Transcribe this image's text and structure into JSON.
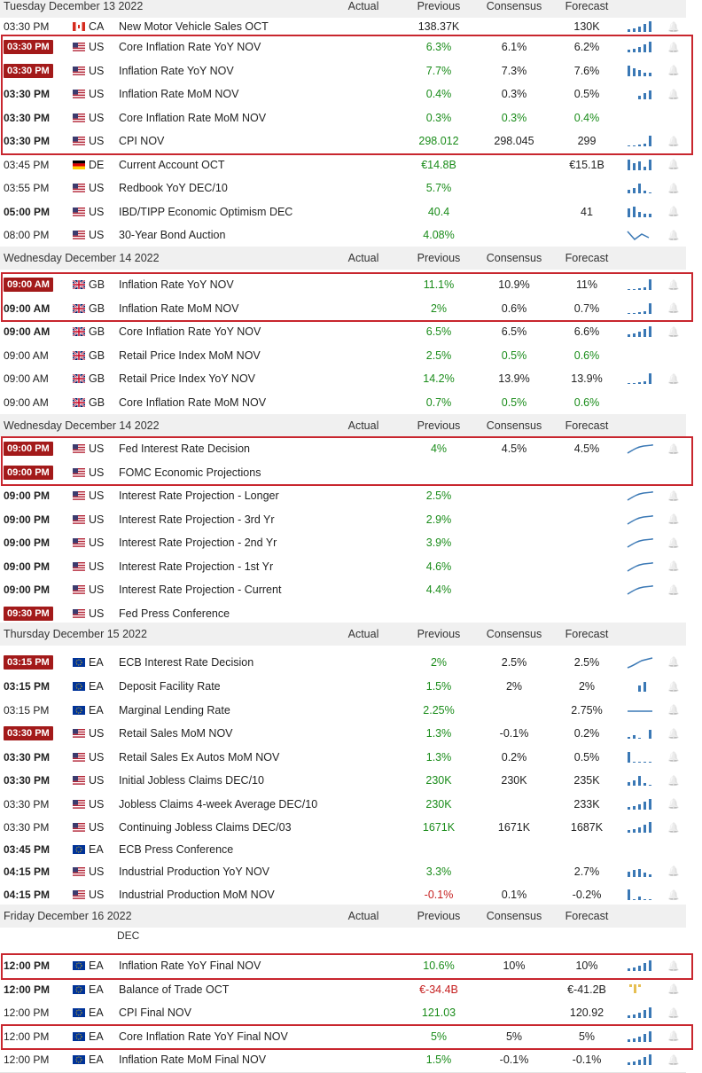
{
  "colors": {
    "positive": "#1a8c1a",
    "negative": "#c51f1f",
    "highlight_time": "#a31a1a",
    "box_border": "#c8262e",
    "spark_blue": "#3a78b5",
    "spark_gold": "#e6bf52"
  },
  "sections": [
    {
      "day": "Tuesday December 13 2022",
      "headers": {
        "actual": "Actual",
        "previous": "Previous",
        "consensus": "Consensus",
        "forecast": "Forecast"
      },
      "rows": [
        {
          "time": "03:30 PM",
          "time_style": "normal",
          "flag": "ca",
          "country": "CA",
          "event": "New Motor Vehicle Sales OCT",
          "actual": "",
          "previous": "138.37K",
          "previous_color": "none",
          "consensus": "",
          "forecast": "130K",
          "spark": "bars",
          "bell": true
        },
        {
          "time": "03:30 PM",
          "time_style": "highlight",
          "flag": "us",
          "country": "US",
          "event": "Core Inflation Rate YoY NOV",
          "actual": "",
          "previous": "6.3%",
          "previous_color": "green",
          "consensus": "6.1%",
          "forecast": "6.2%",
          "spark": "bars",
          "bell": true
        },
        {
          "time": "03:30 PM",
          "time_style": "highlight",
          "flag": "us",
          "country": "US",
          "event": "Inflation Rate YoY NOV",
          "actual": "",
          "previous": "7.7%",
          "previous_color": "green",
          "consensus": "7.3%",
          "forecast": "7.6%",
          "spark": "bars2",
          "bell": true
        },
        {
          "time": "03:30 PM",
          "time_style": "bold",
          "flag": "us",
          "country": "US",
          "event": "Inflation Rate MoM NOV",
          "actual": "",
          "previous": "0.4%",
          "previous_color": "green",
          "consensus": "0.3%",
          "forecast": "0.5%",
          "spark": "bars3",
          "bell": true
        },
        {
          "time": "03:30 PM",
          "time_style": "bold",
          "flag": "us",
          "country": "US",
          "event": "Core Inflation Rate MoM NOV",
          "actual": "",
          "previous": "0.3%",
          "previous_color": "green",
          "consensus": "0.3%",
          "consensus_color": "green",
          "forecast": "0.4%",
          "forecast_color": "green",
          "spark": "",
          "bell": false
        },
        {
          "time": "03:30 PM",
          "time_style": "bold",
          "flag": "us",
          "country": "US",
          "event": "CPI NOV",
          "actual": "",
          "previous": "298.012",
          "previous_color": "green",
          "consensus": "298.045",
          "forecast": "299",
          "spark": "rise",
          "bell": true
        },
        {
          "time": "03:45 PM",
          "time_style": "normal",
          "flag": "de",
          "country": "DE",
          "event": "Current Account OCT",
          "actual": "",
          "previous": "€14.8B",
          "previous_color": "green",
          "consensus": "",
          "forecast": "€15.1B",
          "spark": "bars4",
          "bell": true
        },
        {
          "time": "03:55 PM",
          "time_style": "normal",
          "flag": "us",
          "country": "US",
          "event": "Redbook YoY DEC/10",
          "actual": "",
          "previous": "5.7%",
          "previous_color": "green",
          "consensus": "",
          "forecast": "",
          "spark": "bars5",
          "bell": true
        },
        {
          "time": "05:00 PM",
          "time_style": "bold",
          "flag": "us",
          "country": "US",
          "event": "IBD/TIPP Economic Optimism DEC",
          "actual": "",
          "previous": "40.4",
          "previous_color": "green",
          "consensus": "",
          "forecast": "41",
          "spark": "bars6",
          "bell": true
        },
        {
          "time": "08:00 PM",
          "time_style": "normal",
          "flag": "us",
          "country": "US",
          "event": "30-Year Bond Auction",
          "actual": "",
          "previous": "4.08%",
          "previous_color": "green",
          "consensus": "",
          "forecast": "",
          "spark": "zig",
          "bell": true
        }
      ]
    },
    {
      "day": "Wednesday December 14 2022",
      "headers": {
        "actual": "Actual",
        "previous": "Previous",
        "consensus": "Consensus",
        "forecast": "Forecast"
      },
      "rows": [
        {
          "time": "09:00 AM",
          "time_style": "highlight",
          "flag": "gb",
          "country": "GB",
          "event": "Inflation Rate YoY NOV",
          "actual": "",
          "previous": "11.1%",
          "previous_color": "green",
          "consensus": "10.9%",
          "forecast": "11%",
          "spark": "rise",
          "bell": true
        },
        {
          "time": "09:00 AM",
          "time_style": "bold",
          "flag": "gb",
          "country": "GB",
          "event": "Inflation Rate MoM NOV",
          "actual": "",
          "previous": "2%",
          "previous_color": "green",
          "consensus": "0.6%",
          "forecast": "0.7%",
          "spark": "rise",
          "bell": true
        },
        {
          "time": "09:00 AM",
          "time_style": "bold",
          "flag": "gb",
          "country": "GB",
          "event": "Core Inflation Rate YoY NOV",
          "actual": "",
          "previous": "6.5%",
          "previous_color": "green",
          "consensus": "6.5%",
          "forecast": "6.6%",
          "spark": "bars",
          "bell": true
        },
        {
          "time": "09:00 AM",
          "time_style": "normal",
          "flag": "gb",
          "country": "GB",
          "event": "Retail Price Index MoM NOV",
          "actual": "",
          "previous": "2.5%",
          "previous_color": "green",
          "consensus": "0.5%",
          "consensus_color": "green",
          "forecast": "0.6%",
          "forecast_color": "green",
          "spark": "",
          "bell": false
        },
        {
          "time": "09:00 AM",
          "time_style": "normal",
          "flag": "gb",
          "country": "GB",
          "event": "Retail Price Index YoY NOV",
          "actual": "",
          "previous": "14.2%",
          "previous_color": "green",
          "consensus": "13.9%",
          "forecast": "13.9%",
          "spark": "rise",
          "bell": true
        },
        {
          "time": "09:00 AM",
          "time_style": "normal",
          "flag": "gb",
          "country": "GB",
          "event": "Core Inflation Rate MoM NOV",
          "actual": "",
          "previous": "0.7%",
          "previous_color": "green",
          "consensus": "0.5%",
          "consensus_color": "green",
          "forecast": "0.6%",
          "forecast_color": "green",
          "spark": "",
          "bell": false
        }
      ]
    },
    {
      "day": "Wednesday December 14 2022",
      "headers": {
        "actual": "Actual",
        "previous": "Previous",
        "consensus": "Consensus",
        "forecast": "Forecast"
      },
      "rows": [
        {
          "time": "09:00 PM",
          "time_style": "highlight",
          "flag": "us",
          "country": "US",
          "event": "Fed Interest Rate Decision",
          "actual": "",
          "previous": "4%",
          "previous_color": "green",
          "consensus": "4.5%",
          "forecast": "4.5%",
          "spark": "curve",
          "bell": true
        },
        {
          "time": "09:00 PM",
          "time_style": "highlight",
          "flag": "us",
          "country": "US",
          "event": "FOMC Economic Projections",
          "actual": "",
          "previous": "",
          "previous_color": "none",
          "consensus": "",
          "forecast": "",
          "spark": "",
          "bell": false
        },
        {
          "time": "09:00 PM",
          "time_style": "bold",
          "flag": "us",
          "country": "US",
          "event": "Interest Rate Projection - Longer",
          "actual": "",
          "previous": "2.5%",
          "previous_color": "green",
          "consensus": "",
          "forecast": "",
          "spark": "curve",
          "bell": true
        },
        {
          "time": "09:00 PM",
          "time_style": "bold",
          "flag": "us",
          "country": "US",
          "event": "Interest Rate Projection - 3rd Yr",
          "actual": "",
          "previous": "2.9%",
          "previous_color": "green",
          "consensus": "",
          "forecast": "",
          "spark": "curve",
          "bell": true
        },
        {
          "time": "09:00 PM",
          "time_style": "bold",
          "flag": "us",
          "country": "US",
          "event": "Interest Rate Projection - 2nd Yr",
          "actual": "",
          "previous": "3.9%",
          "previous_color": "green",
          "consensus": "",
          "forecast": "",
          "spark": "curve",
          "bell": true
        },
        {
          "time": "09:00 PM",
          "time_style": "bold",
          "flag": "us",
          "country": "US",
          "event": "Interest Rate Projection - 1st Yr",
          "actual": "",
          "previous": "4.6%",
          "previous_color": "green",
          "consensus": "",
          "forecast": "",
          "spark": "curve",
          "bell": true
        },
        {
          "time": "09:00 PM",
          "time_style": "bold",
          "flag": "us",
          "country": "US",
          "event": "Interest Rate Projection - Current",
          "actual": "",
          "previous": "4.4%",
          "previous_color": "green",
          "consensus": "",
          "forecast": "",
          "spark": "curve",
          "bell": true
        },
        {
          "time": "09:30 PM",
          "time_style": "highlight",
          "flag": "us",
          "country": "US",
          "event": "Fed Press Conference",
          "actual": "",
          "previous": "",
          "previous_color": "none",
          "consensus": "",
          "forecast": "",
          "spark": "",
          "bell": false
        }
      ]
    },
    {
      "day": "Thursday December 15 2022",
      "headers": {
        "actual": "Actual",
        "previous": "Previous",
        "consensus": "Consensus",
        "forecast": "Forecast"
      },
      "rows": [
        {
          "time": "03:15 PM",
          "time_style": "highlight",
          "flag": "eu",
          "country": "EA",
          "event": "ECB Interest Rate Decision",
          "actual": "",
          "previous": "2%",
          "previous_color": "green",
          "consensus": "2.5%",
          "forecast": "2.5%",
          "spark": "curve2",
          "bell": true
        },
        {
          "time": "03:15 PM",
          "time_style": "bold",
          "flag": "eu",
          "country": "EA",
          "event": "Deposit Facility Rate",
          "actual": "",
          "previous": "1.5%",
          "previous_color": "green",
          "consensus": "2%",
          "forecast": "2%",
          "spark": "twobar",
          "bell": true
        },
        {
          "time": "03:15 PM",
          "time_style": "normal",
          "flag": "eu",
          "country": "EA",
          "event": "Marginal Lending Rate",
          "actual": "",
          "previous": "2.25%",
          "previous_color": "green",
          "consensus": "",
          "forecast": "2.75%",
          "spark": "flat",
          "bell": true
        },
        {
          "time": "03:30 PM",
          "time_style": "highlight",
          "flag": "us",
          "country": "US",
          "event": "Retail Sales MoM NOV",
          "actual": "",
          "previous": "1.3%",
          "previous_color": "green",
          "consensus": "-0.1%",
          "forecast": "0.2%",
          "spark": "mix",
          "bell": true
        },
        {
          "time": "03:30 PM",
          "time_style": "bold",
          "flag": "us",
          "country": "US",
          "event": "Retail Sales Ex Autos MoM NOV",
          "actual": "",
          "previous": "1.3%",
          "previous_color": "green",
          "consensus": "0.2%",
          "forecast": "0.5%",
          "spark": "fall",
          "bell": true
        },
        {
          "time": "03:30 PM",
          "time_style": "bold",
          "flag": "us",
          "country": "US",
          "event": "Initial Jobless Claims DEC/10",
          "actual": "",
          "previous": "230K",
          "previous_color": "green",
          "consensus": "230K",
          "forecast": "235K",
          "spark": "bars5",
          "bell": true
        },
        {
          "time": "03:30 PM",
          "time_style": "normal",
          "flag": "us",
          "country": "US",
          "event": "Jobless Claims 4-week Average DEC/10",
          "actual": "",
          "previous": "230K",
          "previous_color": "green",
          "consensus": "",
          "forecast": "233K",
          "spark": "bars",
          "bell": true
        },
        {
          "time": "03:30 PM",
          "time_style": "normal",
          "flag": "us",
          "country": "US",
          "event": "Continuing Jobless Claims DEC/03",
          "actual": "",
          "previous": "1671K",
          "previous_color": "green",
          "consensus": "1671K",
          "forecast": "1687K",
          "spark": "bars",
          "bell": true
        },
        {
          "time": "03:45 PM",
          "time_style": "bold",
          "flag": "eu",
          "country": "EA",
          "event": "ECB Press Conference",
          "actual": "",
          "previous": "",
          "previous_color": "none",
          "consensus": "",
          "forecast": "",
          "spark": "",
          "bell": false
        },
        {
          "time": "04:15 PM",
          "time_style": "bold",
          "flag": "us",
          "country": "US",
          "event": "Industrial Production YoY NOV",
          "actual": "",
          "previous": "3.3%",
          "previous_color": "green",
          "consensus": "",
          "forecast": "2.7%",
          "spark": "bars7",
          "bell": true
        },
        {
          "time": "04:15 PM",
          "time_style": "bold",
          "flag": "us",
          "country": "US",
          "event": "Industrial Production MoM NOV",
          "actual": "",
          "previous": "-0.1%",
          "previous_color": "red",
          "consensus": "0.1%",
          "forecast": "-0.2%",
          "spark": "fall2",
          "bell": true
        }
      ]
    },
    {
      "day": "Friday December 16 2022",
      "headers": {
        "actual": "Actual",
        "previous": "Previous",
        "consensus": "Consensus",
        "forecast": "Forecast"
      },
      "cut_label": "DEC",
      "rows": [
        {
          "time": "12:00 PM",
          "time_style": "bold",
          "flag": "eu",
          "country": "EA",
          "event": "Inflation Rate YoY Final NOV",
          "actual": "",
          "previous": "10.6%",
          "previous_color": "green",
          "consensus": "10%",
          "forecast": "10%",
          "spark": "bars",
          "bell": true
        },
        {
          "time": "12:00 PM",
          "time_style": "bold",
          "flag": "eu",
          "country": "EA",
          "event": "Balance of Trade OCT",
          "actual": "",
          "previous": "€-34.4B",
          "previous_color": "red",
          "consensus": "",
          "forecast": "€-41.2B",
          "spark": "gold",
          "bell": true
        },
        {
          "time": "12:00 PM",
          "time_style": "normal",
          "flag": "eu",
          "country": "EA",
          "event": "CPI Final NOV",
          "actual": "",
          "previous": "121.03",
          "previous_color": "green",
          "consensus": "",
          "forecast": "120.92",
          "spark": "bars",
          "bell": true
        },
        {
          "time": "12:00 PM",
          "time_style": "normal",
          "flag": "eu",
          "country": "EA",
          "event": "Core Inflation Rate YoY Final NOV",
          "actual": "",
          "previous": "5%",
          "previous_color": "green",
          "consensus": "5%",
          "forecast": "5%",
          "spark": "bars",
          "bell": true
        },
        {
          "time": "12:00 PM",
          "time_style": "normal",
          "flag": "eu",
          "country": "EA",
          "event": "Inflation Rate MoM Final NOV",
          "actual": "",
          "previous": "1.5%",
          "previous_color": "green",
          "consensus": "-0.1%",
          "forecast": "-0.1%",
          "spark": "bars",
          "bell": true
        }
      ]
    }
  ],
  "highlight_boxes": [
    {
      "section": 0,
      "from": 1,
      "to": 5
    },
    {
      "section": 1,
      "from": 0,
      "to": 1
    },
    {
      "section": 2,
      "from": 0,
      "to": 1
    },
    {
      "section": 4,
      "from": 0,
      "to": 0
    },
    {
      "section": 4,
      "from": 3,
      "to": 3
    }
  ]
}
